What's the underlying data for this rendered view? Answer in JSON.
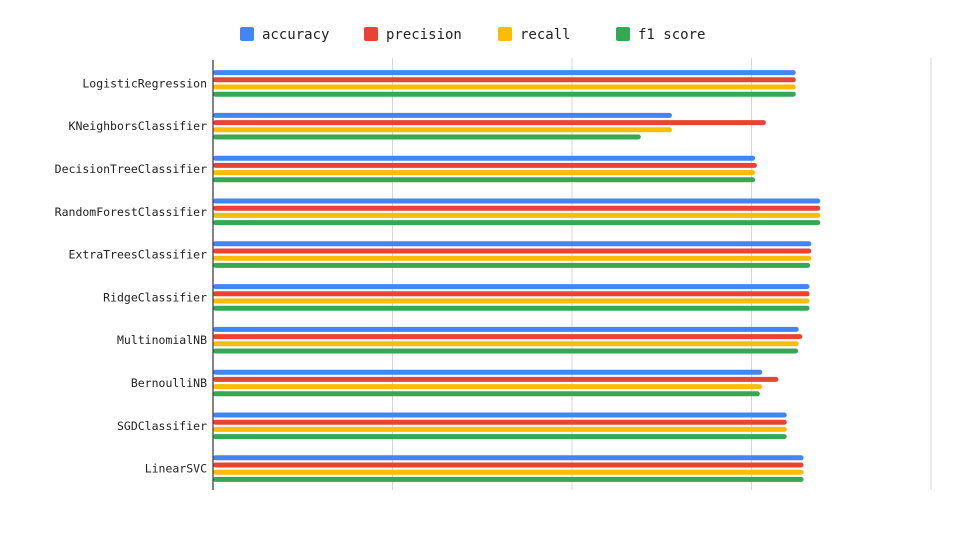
{
  "chart_data": {
    "type": "bar",
    "orientation": "horizontal",
    "title": "",
    "xlabel": "",
    "ylabel": "",
    "categories": [
      "LogisticRegression",
      "KNeighborsClassifier",
      "DecisionTreeClassifier",
      "RandomForestClassifier",
      "ExtraTreesClassifier",
      "RidgeClassifier",
      "MultinomialNB",
      "BernoulliNB",
      "SGDClassifier",
      "LinearSVC"
    ],
    "series": [
      {
        "name": "accuracy",
        "color": "#4285F4",
        "values": [
          0.974,
          0.767,
          0.906,
          1.015,
          1.0,
          0.997,
          0.979,
          0.918,
          0.959,
          0.987
        ]
      },
      {
        "name": "precision",
        "color": "#EA4335",
        "values": [
          0.974,
          0.924,
          0.909,
          1.015,
          1.0,
          0.997,
          0.985,
          0.945,
          0.959,
          0.987
        ]
      },
      {
        "name": "recall",
        "color": "#FBBC04",
        "values": [
          0.974,
          0.767,
          0.906,
          1.015,
          1.0,
          0.997,
          0.979,
          0.918,
          0.959,
          0.987
        ]
      },
      {
        "name": "f1 score",
        "color": "#34A853",
        "values": [
          0.974,
          0.715,
          0.906,
          1.015,
          0.998,
          0.997,
          0.978,
          0.914,
          0.959,
          0.987
        ]
      }
    ],
    "xlim": [
      0,
      1.2
    ],
    "grid": true,
    "legend_position": "top"
  }
}
